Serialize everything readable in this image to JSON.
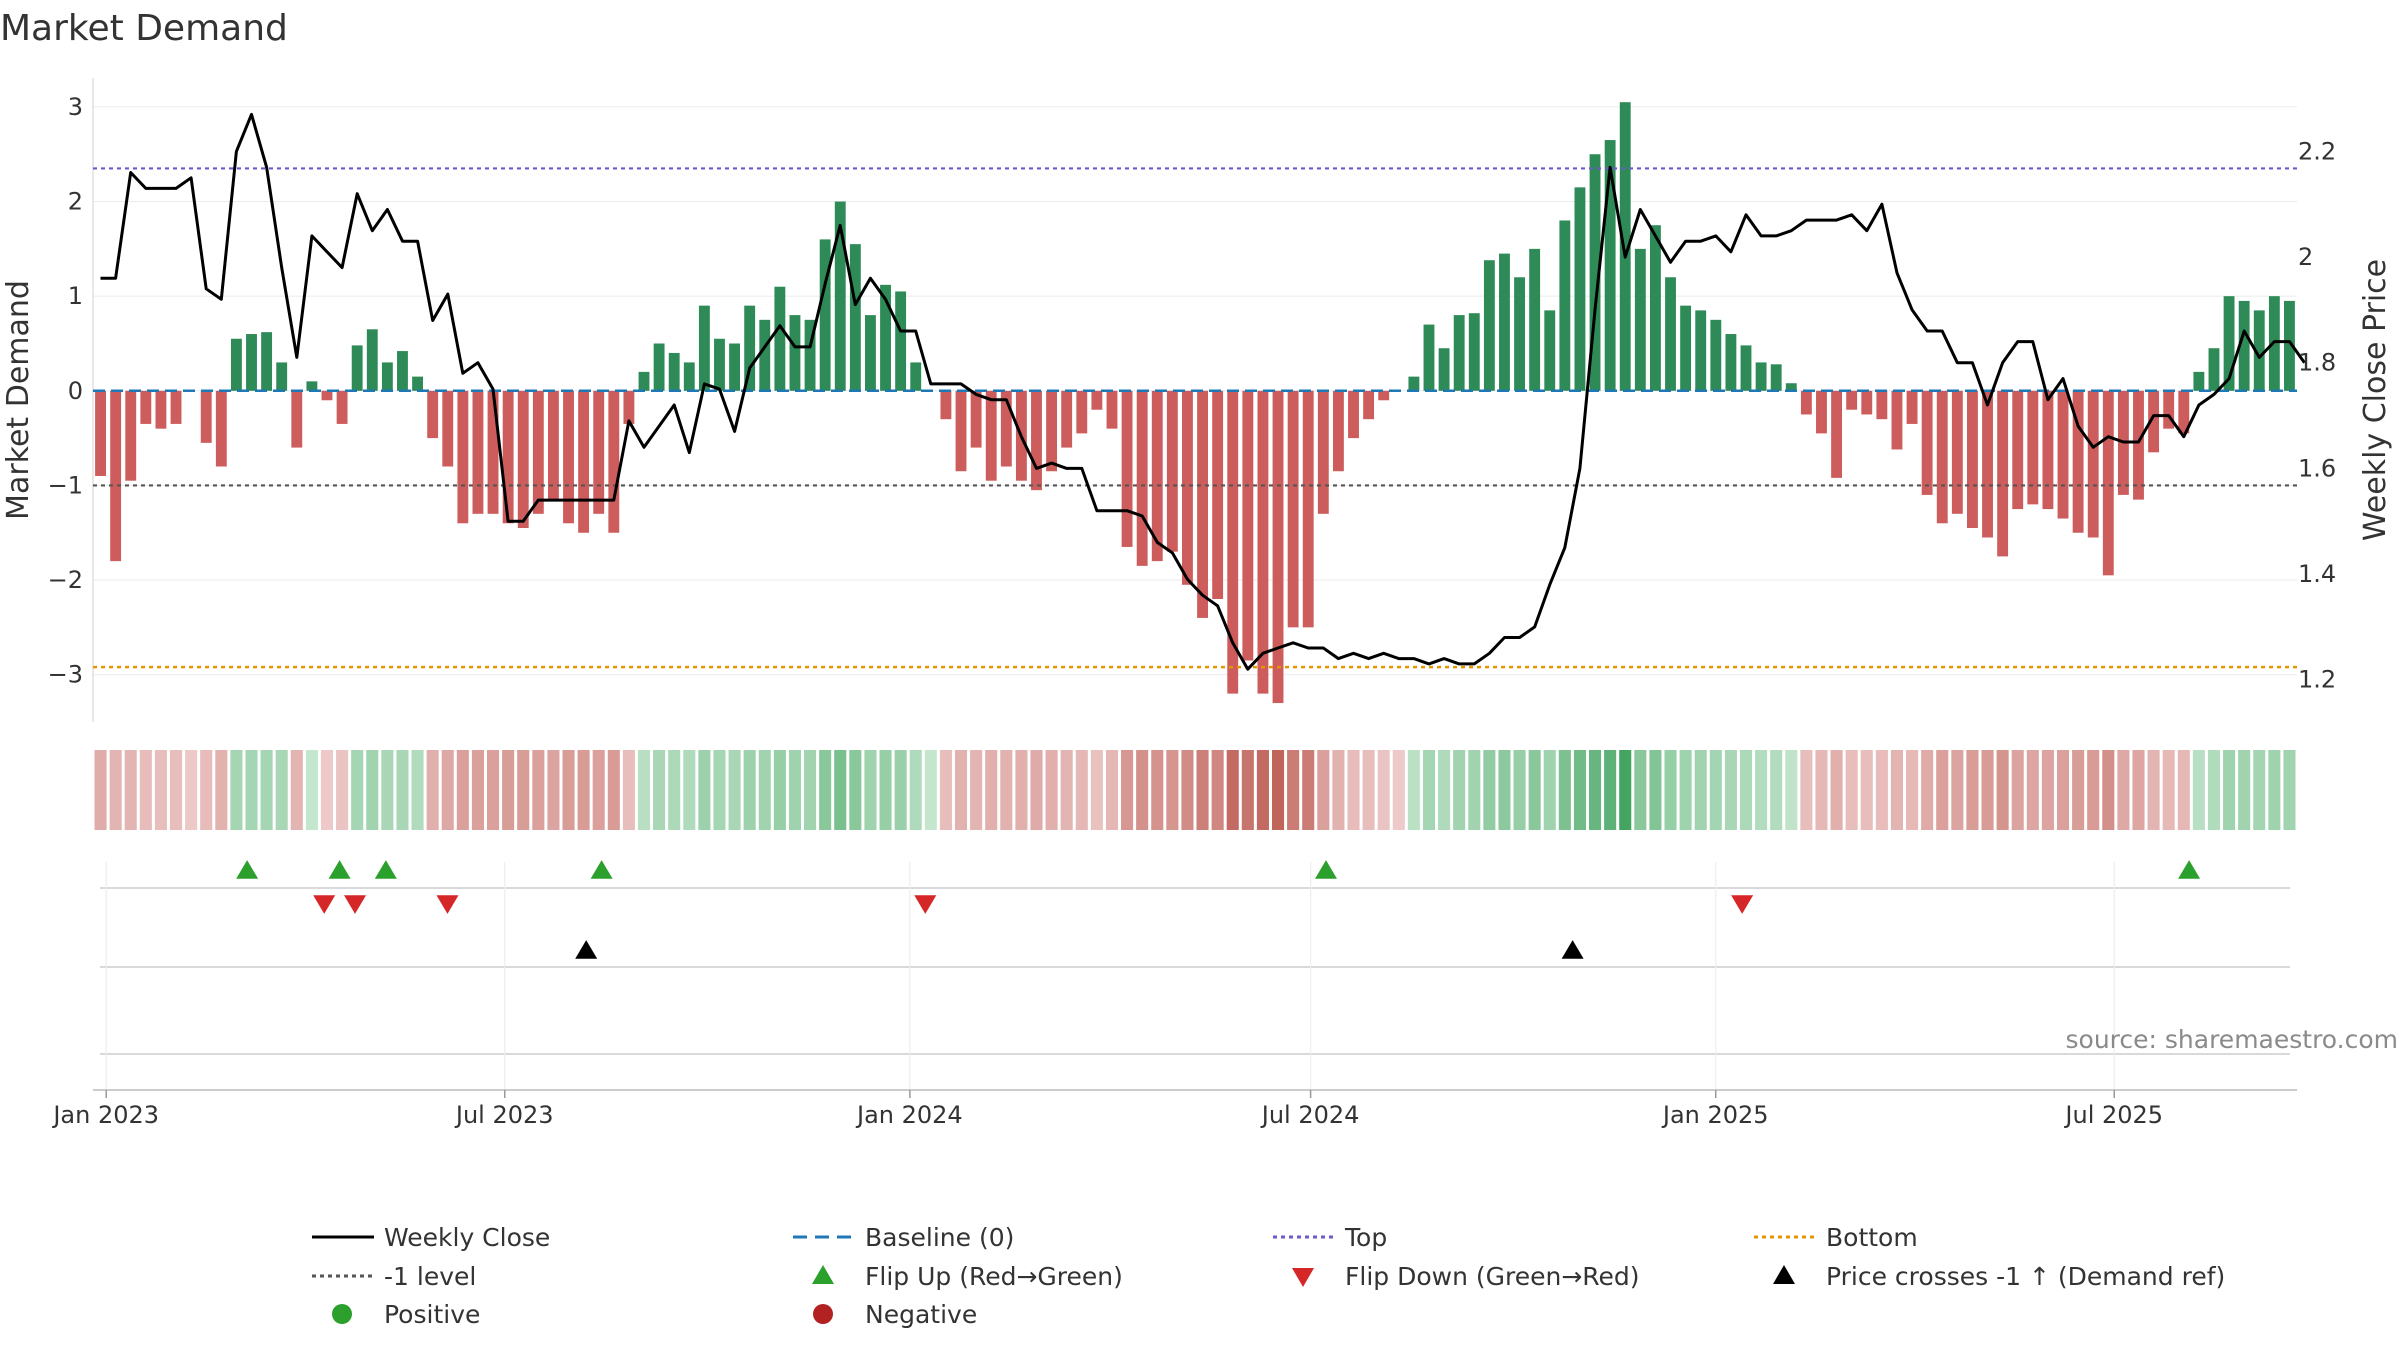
{
  "chart_data": {
    "type": "bar",
    "title": "Market Demand",
    "ylabel_left": "Market Demand",
    "ylabel_right": "Weekly Close Price",
    "ylim_left": [
      -3.5,
      3.2
    ],
    "ylim_right": [
      1.12,
      2.32
    ],
    "yticks_left": [
      "3",
      "2",
      "1",
      "0",
      "−1",
      "−2",
      "−3"
    ],
    "yticks_left_values": [
      3,
      2,
      1,
      0,
      -1,
      -2,
      -3
    ],
    "yticks_right": [
      "2.2",
      "2",
      "1.8",
      "1.6",
      "1.4",
      "1.2"
    ],
    "yticks_right_values": [
      2.2,
      2.0,
      1.8,
      1.6,
      1.4,
      1.2
    ],
    "x_range": [
      "2022-12-26",
      "2025-09-22"
    ],
    "xticks": [
      {
        "label": "Jan 2023",
        "date": "2023-01-01"
      },
      {
        "label": "Jul 2023",
        "date": "2023-07-01"
      },
      {
        "label": "Jan 2024",
        "date": "2024-01-01"
      },
      {
        "label": "Jul 2024",
        "date": "2024-07-01"
      },
      {
        "label": "Jan 2025",
        "date": "2025-01-01"
      },
      {
        "label": "Jul 2025",
        "date": "2025-07-01"
      }
    ],
    "reference_levels": {
      "top": 2.35,
      "bottom": -2.92,
      "minus_one": -1.0,
      "baseline": 0
    },
    "series": [
      {
        "name": "Market Demand",
        "axis": "left",
        "values": [
          -0.9,
          -1.8,
          -0.95,
          -0.35,
          -0.4,
          -0.35,
          0,
          -0.55,
          -0.8,
          0.55,
          0.6,
          0.62,
          0.3,
          -0.6,
          0.1,
          -0.1,
          -0.35,
          0.48,
          0.65,
          0.3,
          0.42,
          0.15,
          -0.5,
          -0.8,
          -1.4,
          -1.3,
          -1.3,
          -1.4,
          -1.45,
          -1.3,
          -1.15,
          -1.4,
          -1.5,
          -1.3,
          -1.5,
          -0.35,
          0.2,
          0.5,
          0.4,
          0.3,
          0.9,
          0.55,
          0.5,
          0.9,
          0.75,
          1.1,
          0.8,
          0.75,
          1.6,
          2.0,
          1.55,
          0.8,
          1.12,
          1.05,
          0.3,
          0,
          -0.3,
          -0.85,
          -0.6,
          -0.95,
          -0.8,
          -0.95,
          -1.05,
          -0.85,
          -0.6,
          -0.45,
          -0.2,
          -0.4,
          -1.65,
          -1.85,
          -1.8,
          -1.7,
          -2.05,
          -2.4,
          -2.2,
          -3.2,
          -2.85,
          -3.2,
          -3.3,
          -2.5,
          -2.5,
          -1.3,
          -0.85,
          -0.5,
          -0.3,
          -0.1,
          0,
          0.15,
          0.7,
          0.45,
          0.8,
          0.82,
          1.38,
          1.45,
          1.2,
          1.5,
          0.85,
          1.8,
          2.15,
          2.5,
          2.65,
          3.05,
          1.5,
          1.75,
          1.2,
          0.9,
          0.85,
          0.75,
          0.6,
          0.48,
          0.3,
          0.28,
          0.08,
          -0.25,
          -0.45,
          -0.92,
          -0.2,
          -0.25,
          -0.3,
          -0.62,
          -0.35,
          -1.1,
          -1.4,
          -1.3,
          -1.45,
          -1.55,
          -1.75,
          -1.25,
          -1.2,
          -1.25,
          -1.35,
          -1.5,
          -1.55,
          -1.95,
          -1.1,
          -1.15,
          -0.65,
          -0.4,
          -0.45,
          0.2,
          0.45,
          1.0,
          0.95,
          0.85,
          1.0,
          0.95
        ]
      },
      {
        "name": "Weekly Close",
        "axis": "right",
        "values": [
          1.96,
          1.96,
          2.16,
          2.13,
          2.13,
          2.13,
          2.15,
          1.94,
          1.92,
          2.2,
          2.27,
          2.17,
          1.98,
          1.81,
          2.04,
          2.01,
          1.98,
          2.12,
          2.05,
          2.09,
          2.03,
          2.03,
          1.88,
          1.93,
          1.78,
          1.8,
          1.75,
          1.5,
          1.5,
          1.54,
          1.54,
          1.54,
          1.54,
          1.54,
          1.54,
          1.69,
          1.64,
          1.68,
          1.72,
          1.63,
          1.76,
          1.75,
          1.67,
          1.79,
          1.83,
          1.87,
          1.83,
          1.83,
          1.95,
          2.06,
          1.91,
          1.96,
          1.92,
          1.86,
          1.86,
          1.76,
          1.76,
          1.76,
          1.74,
          1.73,
          1.73,
          1.66,
          1.6,
          1.61,
          1.6,
          1.6,
          1.52,
          1.52,
          1.52,
          1.51,
          1.46,
          1.44,
          1.39,
          1.36,
          1.34,
          1.27,
          1.22,
          1.25,
          1.26,
          1.27,
          1.26,
          1.26,
          1.24,
          1.25,
          1.24,
          1.25,
          1.24,
          1.24,
          1.23,
          1.24,
          1.23,
          1.23,
          1.25,
          1.28,
          1.28,
          1.3,
          1.38,
          1.45,
          1.6,
          1.9,
          2.17,
          2.0,
          2.09,
          2.04,
          1.99,
          2.03,
          2.03,
          2.04,
          2.01,
          2.08,
          2.04,
          2.04,
          2.05,
          2.07,
          2.07,
          2.07,
          2.08,
          2.05,
          2.1,
          1.97,
          1.9,
          1.86,
          1.86,
          1.8,
          1.8,
          1.72,
          1.8,
          1.84,
          1.84,
          1.73,
          1.77,
          1.68,
          1.64,
          1.66,
          1.65,
          1.65,
          1.7,
          1.7,
          1.66,
          1.72,
          1.74,
          1.77,
          1.86,
          1.81,
          1.84,
          1.84,
          1.8
        ]
      }
    ],
    "strip_intensity": [
      0.35,
      0.28,
      0.28,
      0.22,
      0.2,
      0.2,
      0.12,
      0.22,
      0.3,
      0.32,
      0.32,
      0.32,
      0.3,
      0.28,
      0.12,
      0.1,
      0.15,
      0.32,
      0.35,
      0.3,
      0.3,
      0.25,
      0.32,
      0.38,
      0.45,
      0.45,
      0.45,
      0.48,
      0.48,
      0.45,
      0.42,
      0.48,
      0.5,
      0.45,
      0.5,
      0.2,
      0.2,
      0.3,
      0.28,
      0.26,
      0.38,
      0.32,
      0.3,
      0.38,
      0.35,
      0.42,
      0.36,
      0.35,
      0.5,
      0.6,
      0.5,
      0.36,
      0.42,
      0.4,
      0.26,
      0.12,
      0.2,
      0.3,
      0.28,
      0.32,
      0.3,
      0.32,
      0.36,
      0.32,
      0.28,
      0.25,
      0.18,
      0.25,
      0.52,
      0.58,
      0.56,
      0.54,
      0.62,
      0.72,
      0.66,
      0.9,
      0.82,
      0.9,
      0.95,
      0.75,
      0.75,
      0.45,
      0.3,
      0.22,
      0.2,
      0.15,
      0.1,
      0.18,
      0.32,
      0.26,
      0.35,
      0.35,
      0.45,
      0.48,
      0.42,
      0.5,
      0.36,
      0.58,
      0.66,
      0.72,
      0.78,
      0.95,
      0.5,
      0.55,
      0.42,
      0.36,
      0.35,
      0.33,
      0.3,
      0.28,
      0.24,
      0.24,
      0.15,
      0.2,
      0.25,
      0.32,
      0.2,
      0.2,
      0.22,
      0.28,
      0.24,
      0.36,
      0.45,
      0.42,
      0.48,
      0.5,
      0.55,
      0.42,
      0.4,
      0.42,
      0.45,
      0.48,
      0.5,
      0.6,
      0.38,
      0.4,
      0.28,
      0.24,
      0.25,
      0.2,
      0.25,
      0.36,
      0.35,
      0.33,
      0.36,
      0.35
    ],
    "flip_up_dates": [
      "2023-03-06",
      "2023-04-17",
      "2023-05-08",
      "2023-08-14",
      "2024-07-08",
      "2025-08-04"
    ],
    "flip_down_dates": [
      "2023-04-10",
      "2023-04-24",
      "2023-06-05",
      "2024-01-08",
      "2025-01-13"
    ],
    "price_cross_dates": [
      "2023-08-07",
      "2024-10-28"
    ],
    "colors": {
      "positive_bar": "#2e8b57",
      "negative_bar": "#cd5c5c",
      "price_line": "#000000",
      "baseline": "#1f77b4",
      "top": "#6a5acd",
      "bottom": "#e69500",
      "minus_one": "#555555",
      "flip_up": "#2ca02c",
      "flip_down": "#d62728",
      "cross": "#000000",
      "positive_dot": "#2ca02c",
      "negative_dot": "#b22222"
    },
    "legend": [
      {
        "label": "Weekly Close",
        "kind": "line-solid",
        "color": "#000000"
      },
      {
        "label": "Baseline (0)",
        "kind": "line-dash",
        "color": "#1f77b4"
      },
      {
        "label": "Top",
        "kind": "line-dot",
        "color": "#6a5acd"
      },
      {
        "label": "Bottom",
        "kind": "line-dot",
        "color": "#e69500"
      },
      {
        "label": "-1 level",
        "kind": "line-dot",
        "color": "#555555"
      },
      {
        "label": "Flip Up (Red→Green)",
        "kind": "tri-up",
        "color": "#2ca02c"
      },
      {
        "label": "Flip Down (Green→Red)",
        "kind": "tri-down",
        "color": "#d62728"
      },
      {
        "label": "Price crosses -1 ↑ (Demand ref)",
        "kind": "tri-up",
        "color": "#000000"
      },
      {
        "label": "Positive",
        "kind": "dot",
        "color": "#2ca02c"
      },
      {
        "label": "Negative",
        "kind": "dot",
        "color": "#b22222"
      }
    ],
    "legend_placement": "bottom",
    "source": "source: sharemaestro.com"
  }
}
